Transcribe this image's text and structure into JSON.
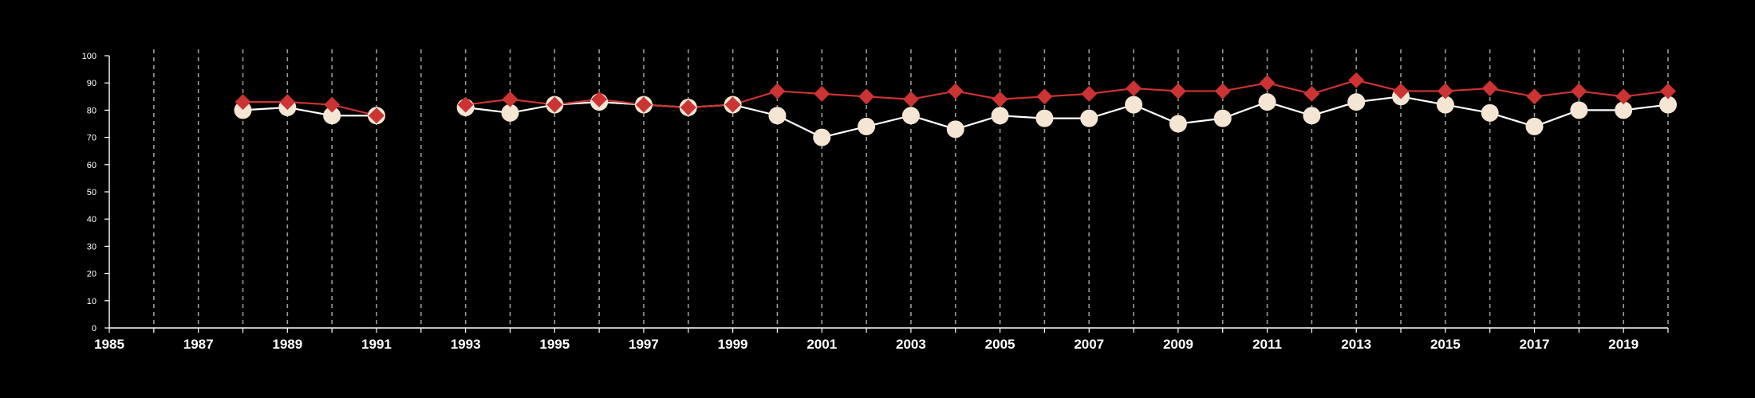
{
  "chart_data": {
    "type": "line",
    "title": "",
    "xlabel": "",
    "ylabel": "",
    "xlim": [
      1985,
      2020
    ],
    "ylim": [
      0,
      100
    ],
    "x_ticks": [
      1985,
      1987,
      1989,
      1991,
      1993,
      1995,
      1997,
      1999,
      2001,
      2003,
      2005,
      2007,
      2009,
      2011,
      2013,
      2015,
      2017,
      2019
    ],
    "y_ticks": [
      0,
      10,
      20,
      30,
      40,
      50,
      60,
      70,
      80,
      90,
      100
    ],
    "vertical_grid": "dashed, every year",
    "legend": "none",
    "x": [
      1988,
      1989,
      1990,
      1991,
      1993,
      1994,
      1995,
      1996,
      1997,
      1998,
      1999,
      2000,
      2001,
      2002,
      2003,
      2004,
      2005,
      2006,
      2007,
      2008,
      2009,
      2010,
      2011,
      2012,
      2013,
      2014,
      2015,
      2016,
      2017,
      2018,
      2019,
      2020
    ],
    "series": [
      {
        "marker": "circle",
        "color": "#f5e6d3",
        "line_color": "#ffffff",
        "values": [
          80,
          81,
          78,
          78,
          81,
          79,
          82,
          83,
          82,
          81,
          82,
          78,
          70,
          74,
          78,
          73,
          78,
          77,
          77,
          82,
          75,
          77,
          83,
          78,
          83,
          85,
          82,
          79,
          74,
          80,
          80,
          82
        ]
      },
      {
        "marker": "diamond",
        "color": "#cc3333",
        "line_color": "#cc3333",
        "values": [
          83,
          83,
          82,
          78,
          82,
          84,
          82,
          84,
          82,
          81,
          82,
          87,
          86,
          85,
          84,
          87,
          84,
          85,
          86,
          88,
          87,
          87,
          90,
          86,
          91,
          87,
          87,
          88,
          85,
          87,
          85,
          87
        ]
      }
    ]
  }
}
